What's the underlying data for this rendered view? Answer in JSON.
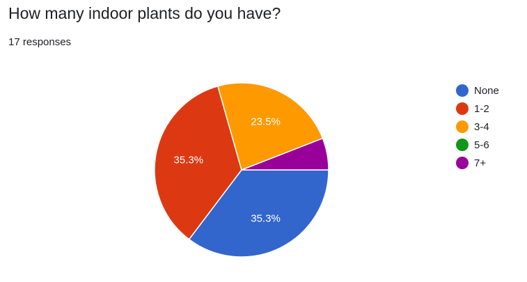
{
  "question": {
    "title": "How many indoor plants do you have?",
    "responses_text": "17 responses"
  },
  "chart_data": {
    "type": "pie",
    "categories": [
      "None",
      "1-2",
      "3-4",
      "5-6",
      "7+"
    ],
    "values": [
      35.3,
      35.3,
      23.5,
      0.0,
      5.9
    ],
    "unit": "%",
    "colors": [
      "#3366cc",
      "#dc3912",
      "#ff9900",
      "#109618",
      "#990099"
    ],
    "data_labels": [
      "35.3%",
      "35.3%",
      "23.5%",
      "",
      ""
    ],
    "start_angle_deg": 90,
    "direction": "clockwise",
    "legend_position": "right"
  }
}
